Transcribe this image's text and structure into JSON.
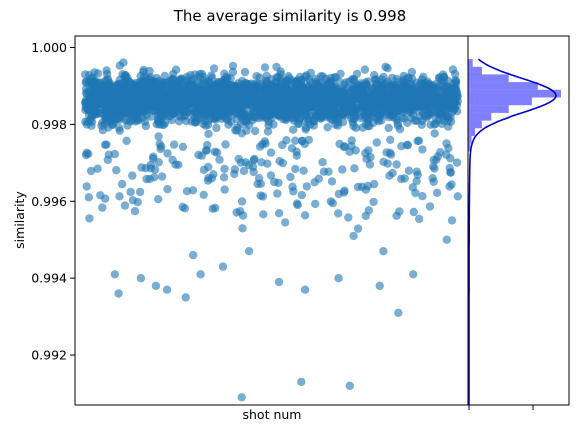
{
  "chart_data": [
    {
      "type": "scatter",
      "title": "The average similarity is 0.998",
      "xlabel": "shot num",
      "ylabel": "similarity",
      "ylim": [
        0.9907,
        1.0003
      ],
      "yticks": [
        "0.992",
        "0.994",
        "0.996",
        "0.998",
        "1.000"
      ],
      "grid": false,
      "point_color": "#1f77b4",
      "point_alpha": 0.6,
      "dense_band": [
        0.9979,
        0.9992
      ],
      "outliers": [
        {
          "x": 0.42,
          "y": 0.9909
        },
        {
          "x": 0.58,
          "y": 0.9913
        },
        {
          "x": 0.71,
          "y": 0.9912
        },
        {
          "x": 0.09,
          "y": 0.9936
        },
        {
          "x": 0.27,
          "y": 0.9935
        },
        {
          "x": 0.84,
          "y": 0.9931
        },
        {
          "x": 0.08,
          "y": 0.9941
        },
        {
          "x": 0.15,
          "y": 0.994
        },
        {
          "x": 0.19,
          "y": 0.9938
        },
        {
          "x": 0.22,
          "y": 0.9937
        },
        {
          "x": 0.31,
          "y": 0.9941
        },
        {
          "x": 0.37,
          "y": 0.9943
        },
        {
          "x": 0.52,
          "y": 0.9939
        },
        {
          "x": 0.59,
          "y": 0.9937
        },
        {
          "x": 0.68,
          "y": 0.994
        },
        {
          "x": 0.79,
          "y": 0.9938
        },
        {
          "x": 0.88,
          "y": 0.9941
        },
        {
          "x": 0.29,
          "y": 0.9946
        },
        {
          "x": 0.44,
          "y": 0.9947
        },
        {
          "x": 0.72,
          "y": 0.9951
        },
        {
          "x": 0.8,
          "y": 0.9947
        },
        {
          "x": 0.97,
          "y": 0.995
        }
      ]
    },
    {
      "type": "histogram",
      "orientation": "horizontal",
      "bar_color": "#0000ff",
      "bar_alpha": 0.5,
      "kde_color": "#0000cc",
      "bins": [
        {
          "y": 0.9996,
          "count": 4
        },
        {
          "y": 0.9994,
          "count": 12
        },
        {
          "y": 0.9992,
          "count": 35
        },
        {
          "y": 0.999,
          "count": 60
        },
        {
          "y": 0.9988,
          "count": 80
        },
        {
          "y": 0.9986,
          "count": 55
        },
        {
          "y": 0.9984,
          "count": 35
        },
        {
          "y": 0.9982,
          "count": 20
        },
        {
          "y": 0.998,
          "count": 12
        },
        {
          "y": 0.9978,
          "count": 6
        },
        {
          "y": 0.9976,
          "count": 3
        },
        {
          "y": 0.9974,
          "count": 2
        }
      ]
    }
  ]
}
